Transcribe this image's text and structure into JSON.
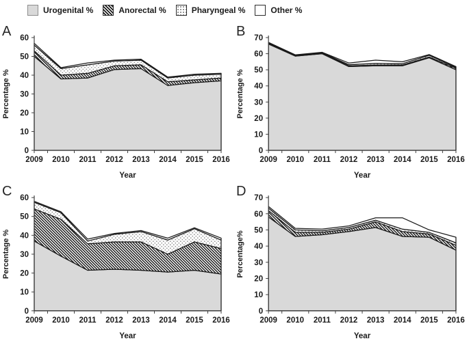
{
  "legend": {
    "items": [
      {
        "label": "Urogenital %",
        "swatch": "gray"
      },
      {
        "label": "Anorectal %",
        "swatch": "hatch"
      },
      {
        "label": "Pharyngeal %",
        "swatch": "dots"
      },
      {
        "label": "Other %",
        "swatch": "white"
      }
    ]
  },
  "colors": {
    "urogenital_fill": "#d9d9d9",
    "outline": "#1a1a1a",
    "axis": "#404040",
    "text": "#1a1a1a",
    "background": "#ffffff"
  },
  "chart_data": [
    {
      "type": "area",
      "panel": "A",
      "stacked": true,
      "x": [
        2009,
        2010,
        2011,
        2012,
        2013,
        2014,
        2015,
        2016
      ],
      "xlabel": "Year",
      "ylabel": "Percentage %",
      "ylim": [
        0,
        60
      ],
      "ytick_step": 10,
      "grid": false,
      "legend_position": "top-shared",
      "series": [
        {
          "name": "Urogenital %",
          "style": "gray",
          "values": [
            50,
            38,
            38.5,
            43,
            43.5,
            34.5,
            36,
            37
          ]
        },
        {
          "name": "Anorectal %",
          "style": "hatch",
          "values": [
            3,
            2,
            2.5,
            2,
            2,
            2,
            1.5,
            1.5
          ]
        },
        {
          "name": "Pharyngeal %",
          "style": "dots",
          "values": [
            3,
            3.5,
            4.5,
            2.5,
            2.5,
            2,
            2.5,
            2
          ]
        },
        {
          "name": "Other %",
          "style": "white",
          "values": [
            1,
            0.5,
            1,
            0.5,
            0.5,
            0.5,
            0.5,
            0.5
          ]
        }
      ]
    },
    {
      "type": "area",
      "panel": "B",
      "stacked": true,
      "x": [
        2009,
        2010,
        2011,
        2012,
        2013,
        2014,
        2015,
        2016
      ],
      "xlabel": "Year",
      "ylabel": "Percentage %",
      "ylim": [
        0,
        70
      ],
      "ytick_step": 10,
      "grid": false,
      "legend_position": "top-shared",
      "series": [
        {
          "name": "Urogenital %",
          "style": "gray",
          "values": [
            66,
            58.5,
            60,
            52,
            52.5,
            52.5,
            57.5,
            50
          ]
        },
        {
          "name": "Anorectal %",
          "style": "hatch",
          "values": [
            0.5,
            0.3,
            0.3,
            0.5,
            0.5,
            0.5,
            0.5,
            1
          ]
        },
        {
          "name": "Pharyngeal %",
          "style": "dots",
          "values": [
            0.5,
            0.3,
            0.3,
            0.7,
            1,
            0.8,
            1,
            0.5
          ]
        },
        {
          "name": "Other %",
          "style": "white",
          "values": [
            0,
            0.2,
            0.3,
            1,
            2,
            1.2,
            0.5,
            0.5
          ]
        }
      ]
    },
    {
      "type": "area",
      "panel": "C",
      "stacked": true,
      "x": [
        2009,
        2010,
        2011,
        2012,
        2013,
        2014,
        2015,
        2016
      ],
      "xlabel": "Year",
      "ylabel": "Percentage %",
      "ylim": [
        0,
        60
      ],
      "ytick_step": 10,
      "grid": false,
      "legend_position": "top-shared",
      "series": [
        {
          "name": "Urogenital %",
          "style": "gray",
          "values": [
            37,
            29,
            21.5,
            22,
            21.5,
            20.5,
            21.5,
            19.5
          ]
        },
        {
          "name": "Anorectal %",
          "style": "hatch",
          "values": [
            17,
            19.5,
            14,
            14.5,
            15,
            9.5,
            15,
            13.5
          ]
        },
        {
          "name": "Pharyngeal %",
          "style": "dots",
          "values": [
            3.5,
            3.5,
            1.5,
            4,
            5.5,
            7.5,
            7,
            4.5
          ]
        },
        {
          "name": "Other %",
          "style": "white",
          "values": [
            0.5,
            0.5,
            1,
            0.5,
            0.5,
            1,
            0.5,
            1
          ]
        }
      ]
    },
    {
      "type": "area",
      "panel": "D",
      "stacked": true,
      "x": [
        2009,
        2010,
        2011,
        2012,
        2013,
        2014,
        2015,
        2016
      ],
      "xlabel": "Year",
      "ylabel": "Percentage%",
      "ylim": [
        0,
        70
      ],
      "ytick_step": 10,
      "grid": false,
      "legend_position": "top-shared",
      "series": [
        {
          "name": "Urogenital %",
          "style": "gray",
          "values": [
            58,
            46,
            47,
            49,
            51.5,
            46,
            45.5,
            37.5
          ]
        },
        {
          "name": "Anorectal %",
          "style": "hatch",
          "values": [
            4,
            2.5,
            1.5,
            1.5,
            3.5,
            3,
            2,
            3
          ]
        },
        {
          "name": "Pharyngeal %",
          "style": "dots",
          "values": [
            1.5,
            1.5,
            1,
            1,
            1,
            1.5,
            1,
            1.5
          ]
        },
        {
          "name": "Other %",
          "style": "white",
          "values": [
            1,
            1,
            1,
            1,
            1.5,
            7,
            1.5,
            3.5
          ]
        }
      ]
    }
  ]
}
